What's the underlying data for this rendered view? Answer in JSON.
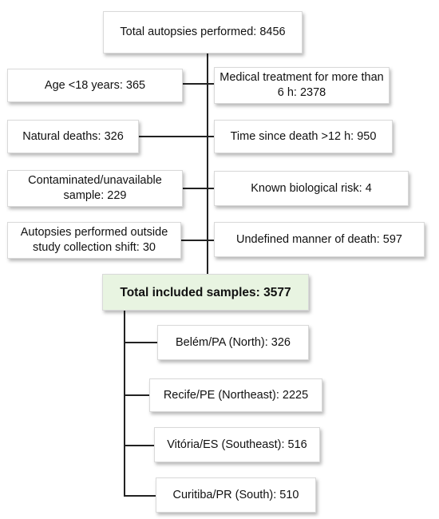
{
  "diagram": {
    "top": {
      "text": "Total autopsies performed: 8456"
    },
    "exclusions_left": [
      {
        "text": "Age <18 years: 365"
      },
      {
        "text": "Natural deaths: 326"
      },
      {
        "text": "Contaminated/unavailable sample: 229"
      },
      {
        "text": "Autopsies performed outside study collection shift: 30"
      }
    ],
    "exclusions_right": [
      {
        "text": "Medical treatment for more than 6 h: 2378"
      },
      {
        "text": "Time since death >12 h: 950"
      },
      {
        "text": "Known biological risk: 4"
      },
      {
        "text": "Undefined manner of death: 597"
      }
    ],
    "total": {
      "text": "Total included samples: 3577"
    },
    "sites": [
      {
        "text": "Belém/PA (North): 326"
      },
      {
        "text": "Recife/PE (Northeast): 2225"
      },
      {
        "text": "Vitória/ES (Southeast): 516"
      },
      {
        "text": "Curitiba/PR (South): 510"
      }
    ],
    "colors": {
      "total_fill": "#e8f4e1",
      "line": "#222222",
      "border": "#d9d9d9"
    }
  }
}
